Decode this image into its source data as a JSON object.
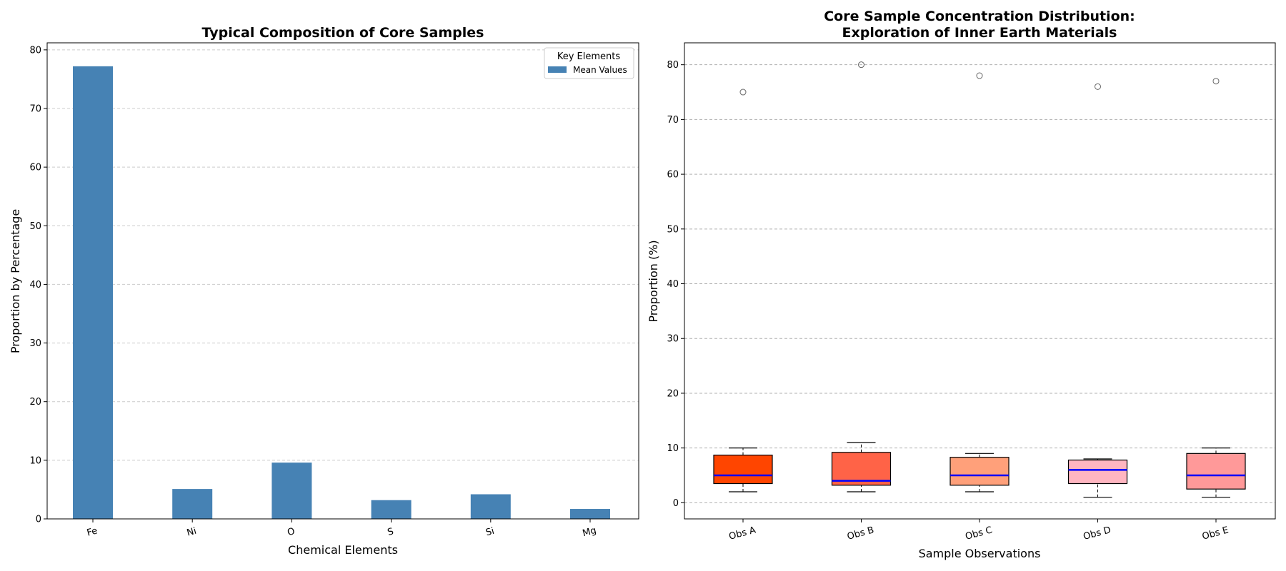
{
  "chart_data": [
    {
      "type": "bar",
      "title": "Typical Composition of Core Samples",
      "xlabel": "Chemical Elements",
      "ylabel": "Proportion by Percentage",
      "categories": [
        "Fe",
        "Ni",
        "O",
        "S",
        "Si",
        "Mg"
      ],
      "series": [
        {
          "name": "Mean Values",
          "values": [
            77.2,
            5.1,
            9.6,
            3.2,
            4.2,
            1.7
          ]
        }
      ],
      "ylim": [
        0,
        81.2
      ],
      "yticks": [
        0,
        10,
        20,
        30,
        40,
        50,
        60,
        70,
        80
      ],
      "grid": "y-dashed",
      "legend": {
        "title": "Key Elements",
        "placement": "top-right"
      },
      "bar_color": "#4682b4"
    },
    {
      "type": "box",
      "title_lines": [
        "Core Sample Concentration Distribution:",
        "Exploration of Inner Earth Materials"
      ],
      "xlabel": "Sample Observations",
      "ylabel": "Proportion (%)",
      "categories": [
        "Obs A",
        "Obs B",
        "Obs C",
        "Obs D",
        "Obs E"
      ],
      "boxes": [
        {
          "whisker_low": 2,
          "q1": 3.5,
          "median": 5,
          "q3": 8.7,
          "whisker_high": 10,
          "outliers": [
            75
          ],
          "color": "#ff4500"
        },
        {
          "whisker_low": 2,
          "q1": 3.2,
          "median": 4,
          "q3": 9.2,
          "whisker_high": 11,
          "outliers": [
            80
          ],
          "color": "#ff6347"
        },
        {
          "whisker_low": 2,
          "q1": 3.2,
          "median": 5,
          "q3": 8.3,
          "whisker_high": 9,
          "outliers": [
            78
          ],
          "color": "#ffa07a"
        },
        {
          "whisker_low": 1,
          "q1": 3.5,
          "median": 6,
          "q3": 7.8,
          "whisker_high": 8,
          "outliers": [
            76
          ],
          "color": "#ffb6c1"
        },
        {
          "whisker_low": 1,
          "q1": 2.5,
          "median": 5,
          "q3": 9,
          "whisker_high": 10,
          "outliers": [
            77
          ],
          "color": "#ff9999"
        }
      ],
      "median_color": "#0000ff",
      "ylim": [
        -2.95,
        84.0
      ],
      "yticks": [
        0,
        10,
        20,
        30,
        40,
        50,
        60,
        70,
        80
      ],
      "grid": "y-dashed"
    }
  ]
}
